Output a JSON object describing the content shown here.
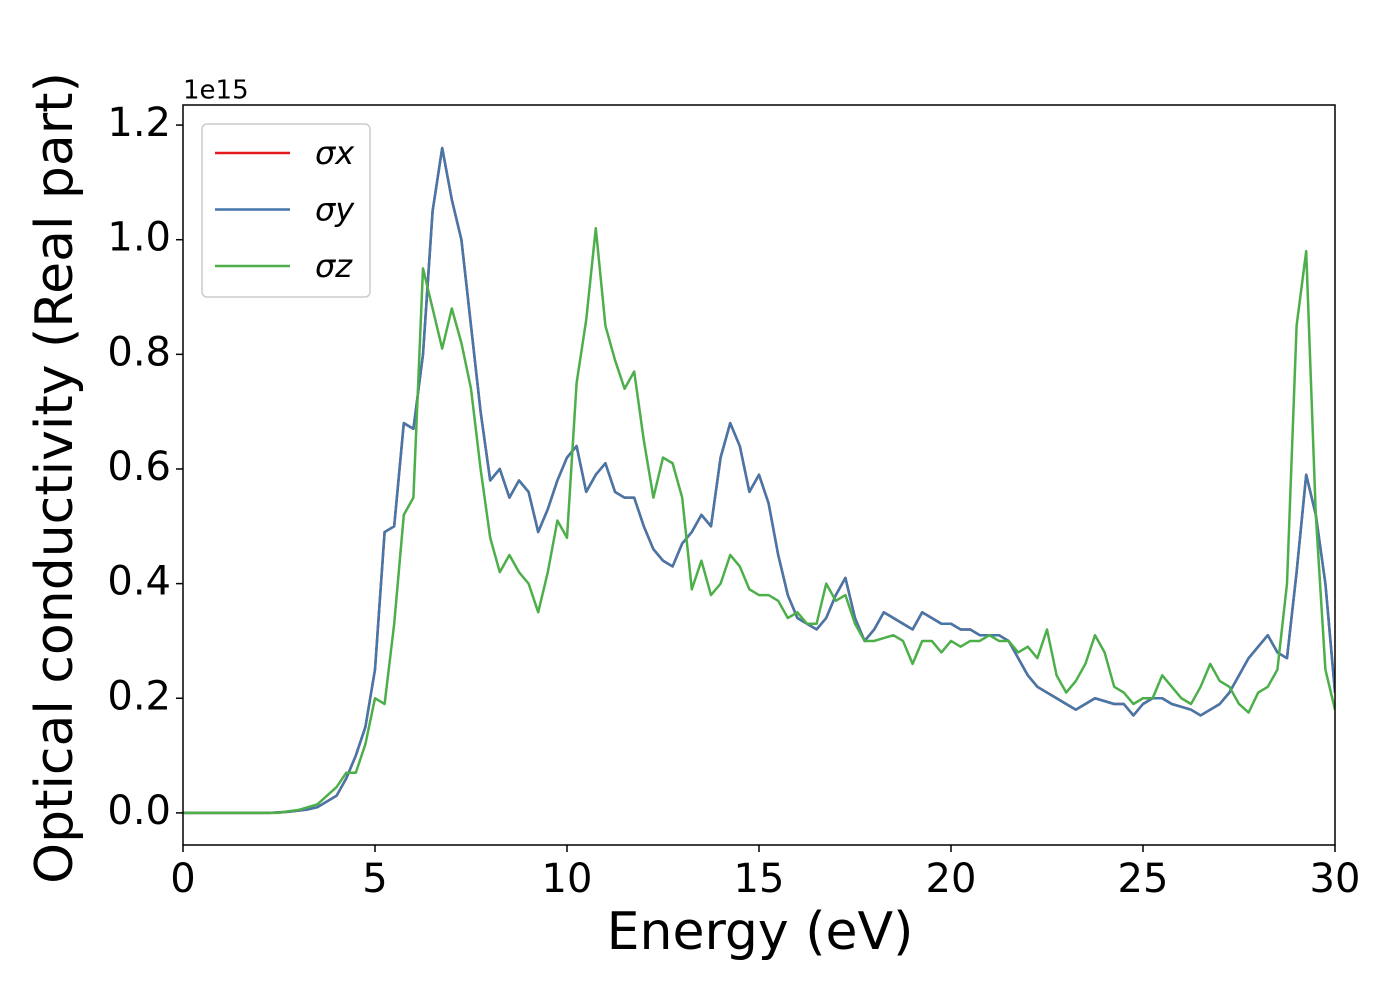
{
  "chart_data": {
    "type": "line",
    "xlabel": "Energy (eV)",
    "ylabel": "Optical conductivity (Real part)",
    "y_offset_label": "1e15",
    "legend": "upper left",
    "xlim": [
      0,
      30
    ],
    "xticks": [
      0,
      5,
      10,
      15,
      20,
      25,
      30
    ],
    "ylim": [
      -0.056,
      1.235
    ],
    "yticks": [
      {
        "value": 0,
        "label": "0.0"
      },
      {
        "value": 0.2,
        "label": "0.2"
      },
      {
        "value": 0.4,
        "label": "0.4"
      },
      {
        "value": 0.6,
        "label": "0.6"
      },
      {
        "value": 0.8,
        "label": "0.8"
      },
      {
        "value": 1.0,
        "label": "1.0"
      },
      {
        "value": 1.2,
        "label": "1.2"
      }
    ],
    "x": [
      0,
      0.25,
      0.5,
      0.75,
      1,
      1.25,
      1.5,
      1.75,
      2,
      2.25,
      2.5,
      2.75,
      3,
      3.25,
      3.5,
      3.75,
      4,
      4.25,
      4.5,
      4.75,
      5,
      5.25,
      5.5,
      5.75,
      6,
      6.25,
      6.5,
      6.75,
      7,
      7.25,
      7.5,
      7.75,
      8,
      8.25,
      8.5,
      8.75,
      9,
      9.25,
      9.5,
      9.75,
      10,
      10.25,
      10.5,
      10.75,
      11,
      11.25,
      11.5,
      11.75,
      12,
      12.25,
      12.5,
      12.75,
      13,
      13.25,
      13.5,
      13.75,
      14,
      14.25,
      14.5,
      14.75,
      15,
      15.25,
      15.5,
      15.75,
      16,
      16.25,
      16.5,
      16.75,
      17,
      17.25,
      17.5,
      17.75,
      18,
      18.25,
      18.5,
      18.75,
      19,
      19.25,
      19.5,
      19.75,
      20,
      20.25,
      20.5,
      20.75,
      21,
      21.25,
      21.5,
      21.75,
      22,
      22.25,
      22.5,
      22.75,
      23,
      23.25,
      23.5,
      23.75,
      24,
      24.25,
      24.5,
      24.75,
      25,
      25.25,
      25.5,
      25.75,
      26,
      26.25,
      26.5,
      26.75,
      27,
      27.25,
      27.5,
      27.75,
      28,
      28.25,
      28.5,
      28.75,
      29,
      29.25,
      29.5,
      29.75,
      30
    ],
    "series": [
      {
        "name": "σx",
        "color": "#e41a1c",
        "values": [
          0,
          0,
          0,
          0,
          0,
          0,
          0,
          0,
          0,
          0,
          0.001,
          0.002,
          0.004,
          0.006,
          0.01,
          0.02,
          0.03,
          0.06,
          0.1,
          0.15,
          0.25,
          0.49,
          0.5,
          0.68,
          0.67,
          0.8,
          1.05,
          1.16,
          1.07,
          1.0,
          0.85,
          0.7,
          0.58,
          0.6,
          0.55,
          0.58,
          0.56,
          0.49,
          0.53,
          0.58,
          0.62,
          0.64,
          0.56,
          0.59,
          0.61,
          0.56,
          0.55,
          0.55,
          0.5,
          0.46,
          0.44,
          0.43,
          0.47,
          0.49,
          0.52,
          0.5,
          0.62,
          0.68,
          0.64,
          0.56,
          0.59,
          0.54,
          0.45,
          0.38,
          0.34,
          0.33,
          0.32,
          0.34,
          0.38,
          0.41,
          0.34,
          0.3,
          0.32,
          0.35,
          0.34,
          0.33,
          0.32,
          0.35,
          0.34,
          0.33,
          0.33,
          0.32,
          0.32,
          0.31,
          0.31,
          0.31,
          0.3,
          0.27,
          0.24,
          0.22,
          0.21,
          0.2,
          0.19,
          0.18,
          0.19,
          0.2,
          0.195,
          0.19,
          0.19,
          0.17,
          0.19,
          0.2,
          0.2,
          0.19,
          0.185,
          0.18,
          0.17,
          0.18,
          0.19,
          0.21,
          0.24,
          0.27,
          0.29,
          0.31,
          0.28,
          0.27,
          0.42,
          0.59,
          0.52,
          0.4,
          0.21
        ]
      },
      {
        "name": "σy",
        "color": "#4477aa",
        "values": [
          0,
          0,
          0,
          0,
          0,
          0,
          0,
          0,
          0,
          0,
          0.001,
          0.002,
          0.004,
          0.006,
          0.01,
          0.02,
          0.03,
          0.06,
          0.1,
          0.15,
          0.25,
          0.49,
          0.5,
          0.68,
          0.67,
          0.8,
          1.05,
          1.16,
          1.07,
          1.0,
          0.85,
          0.7,
          0.58,
          0.6,
          0.55,
          0.58,
          0.56,
          0.49,
          0.53,
          0.58,
          0.62,
          0.64,
          0.56,
          0.59,
          0.61,
          0.56,
          0.55,
          0.55,
          0.5,
          0.46,
          0.44,
          0.43,
          0.47,
          0.49,
          0.52,
          0.5,
          0.62,
          0.68,
          0.64,
          0.56,
          0.59,
          0.54,
          0.45,
          0.38,
          0.34,
          0.33,
          0.32,
          0.34,
          0.38,
          0.41,
          0.34,
          0.3,
          0.32,
          0.35,
          0.34,
          0.33,
          0.32,
          0.35,
          0.34,
          0.33,
          0.33,
          0.32,
          0.32,
          0.31,
          0.31,
          0.31,
          0.3,
          0.27,
          0.24,
          0.22,
          0.21,
          0.2,
          0.19,
          0.18,
          0.19,
          0.2,
          0.195,
          0.19,
          0.19,
          0.17,
          0.19,
          0.2,
          0.2,
          0.19,
          0.185,
          0.18,
          0.17,
          0.18,
          0.19,
          0.21,
          0.24,
          0.27,
          0.29,
          0.31,
          0.28,
          0.27,
          0.42,
          0.59,
          0.52,
          0.4,
          0.21
        ]
      },
      {
        "name": "σz",
        "color": "#4daf4a",
        "values": [
          0,
          0,
          0,
          0,
          0,
          0,
          0,
          0,
          0,
          0,
          0,
          0.003,
          0.005,
          0.01,
          0.015,
          0.03,
          0.045,
          0.07,
          0.07,
          0.12,
          0.2,
          0.19,
          0.33,
          0.52,
          0.55,
          0.95,
          0.88,
          0.81,
          0.88,
          0.82,
          0.74,
          0.6,
          0.48,
          0.42,
          0.45,
          0.42,
          0.4,
          0.35,
          0.42,
          0.51,
          0.48,
          0.75,
          0.86,
          1.02,
          0.85,
          0.79,
          0.74,
          0.77,
          0.65,
          0.55,
          0.62,
          0.61,
          0.55,
          0.39,
          0.44,
          0.38,
          0.4,
          0.45,
          0.43,
          0.39,
          0.38,
          0.38,
          0.37,
          0.34,
          0.35,
          0.33,
          0.33,
          0.4,
          0.37,
          0.38,
          0.33,
          0.3,
          0.3,
          0.305,
          0.31,
          0.3,
          0.26,
          0.3,
          0.3,
          0.28,
          0.3,
          0.29,
          0.3,
          0.3,
          0.31,
          0.3,
          0.3,
          0.28,
          0.29,
          0.27,
          0.32,
          0.24,
          0.21,
          0.23,
          0.26,
          0.31,
          0.28,
          0.22,
          0.21,
          0.19,
          0.2,
          0.2,
          0.24,
          0.22,
          0.2,
          0.19,
          0.22,
          0.26,
          0.23,
          0.22,
          0.19,
          0.175,
          0.21,
          0.22,
          0.25,
          0.4,
          0.85,
          0.98,
          0.52,
          0.25,
          0.18
        ]
      }
    ]
  }
}
